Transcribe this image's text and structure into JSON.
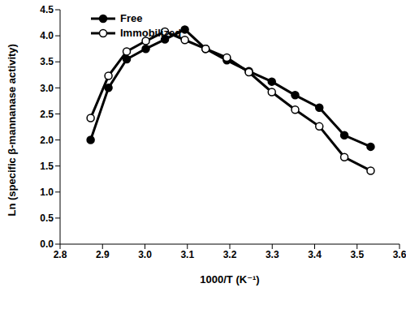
{
  "chart_data": {
    "type": "line",
    "x_label": "1000/T (K⁻¹)",
    "y_label": "Ln (specific β-mannanase activity)",
    "x": [
      2.872,
      2.914,
      2.957,
      3.002,
      3.047,
      3.094,
      3.143,
      3.193,
      3.245,
      3.299,
      3.354,
      3.411,
      3.47,
      3.532
    ],
    "series": [
      {
        "name": "Free",
        "color": "#000000",
        "marker": "filled_circle",
        "values": [
          2.0,
          3.0,
          3.55,
          3.75,
          3.93,
          4.12,
          3.75,
          3.53,
          3.32,
          3.12,
          2.86,
          2.62,
          2.09,
          1.87
        ]
      },
      {
        "name": "Immobilized",
        "color": "#000000",
        "marker": "open_circle",
        "values": [
          2.42,
          3.23,
          3.7,
          3.9,
          4.08,
          3.92,
          3.75,
          3.58,
          3.3,
          2.92,
          2.58,
          2.26,
          1.67,
          1.41
        ]
      }
    ],
    "xlim": [
      2.8,
      3.6
    ],
    "xticks": [
      2.8,
      2.9,
      {
        "value": 3,
        "label": "3.0"
      },
      3.1,
      3.2,
      3.3,
      3.4,
      3.5,
      3.6
    ],
    "ylim": [
      0,
      4.5
    ],
    "yticks": [
      {
        "value": 0,
        "label": "0.0"
      },
      0.5,
      {
        "value": 1,
        "label": "1.0"
      },
      1.5,
      {
        "value": 2,
        "label": "2.0"
      },
      2.5,
      {
        "value": 3,
        "label": "3.0"
      },
      3.5,
      {
        "value": 4,
        "label": "4.0"
      },
      4.5
    ],
    "legend": "upper left",
    "grid": false
  }
}
